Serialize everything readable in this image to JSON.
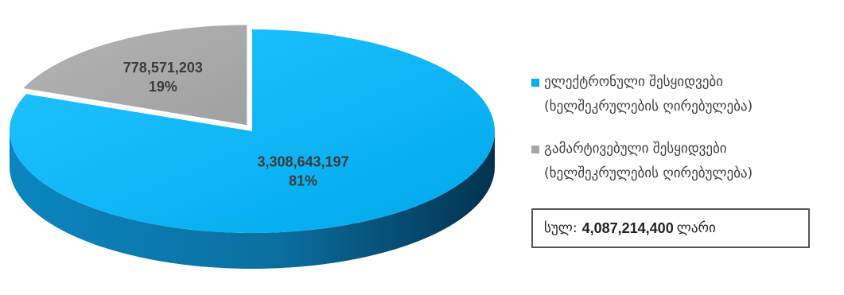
{
  "chart_data": {
    "type": "pie",
    "slices": [
      {
        "value": 3308643197,
        "value_label": "3,308,643,197",
        "percent_label": "81%",
        "color": "#00b0f0"
      },
      {
        "value": 778571203,
        "value_label": "778,571,203",
        "percent_label": "19%",
        "color": "#a6a6a6"
      }
    ],
    "legend": [
      {
        "line1": "ელექტრონული შესყიდვები",
        "line2": "(ხელშეკრულების ღირებულება)",
        "color": "#00b0f0"
      },
      {
        "line1": "გამარტივებული შესყიდვები",
        "line2": "(ხელშეკრულების ღირებულება)",
        "color": "#a6a6a6"
      }
    ],
    "total": {
      "prefix": "სულ:",
      "value": "4,087,214,400",
      "unit": "ლარი"
    },
    "style": "3d-exploded-pie"
  }
}
